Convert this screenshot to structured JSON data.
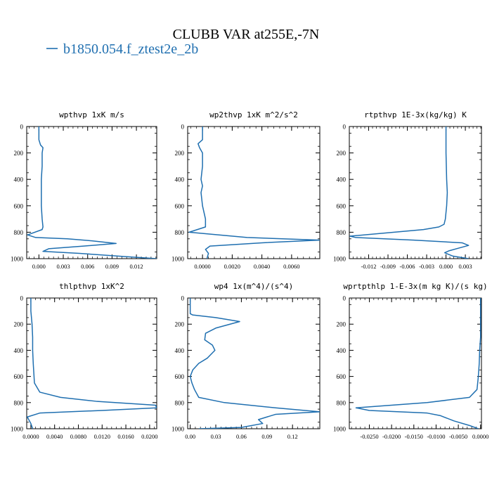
{
  "figure": {
    "title": "CLUBB VAR at255E,-7N",
    "legend": [
      {
        "label": "b1850.054.f_ztest2e_2b",
        "color": "#1f6fb0"
      }
    ]
  },
  "colors": {
    "line": "#1f6fb0",
    "axis": "#000000"
  },
  "chart_data": [
    {
      "type": "line",
      "title": "wpthvp   1xK m/s",
      "ylim": [
        1000,
        0
      ],
      "yticks": [
        "0",
        "200",
        "400",
        "600",
        "800",
        "1000"
      ],
      "xlim": [
        -0.0015,
        0.0145
      ],
      "xticks": [
        0.0,
        0.003,
        0.006,
        0.009,
        0.012
      ],
      "xticklabels": [
        "0.000",
        "0.003",
        "0.006",
        "0.009",
        "0.012"
      ],
      "series": [
        {
          "x": [
            0.0,
            0.0,
            0.0002,
            0.0005,
            0.0004,
            0.0004,
            0.0003,
            0.0003,
            0.0003,
            0.0004,
            0.0005,
            0.0004,
            -0.0014,
            -0.0004,
            0.0035,
            0.0065,
            0.0095,
            0.0055,
            0.0012,
            0.0005,
            0.005,
            0.0107,
            0.0145
          ],
          "y": [
            0,
            100,
            140,
            160,
            200,
            300,
            400,
            500,
            600,
            700,
            760,
            780,
            820,
            840,
            850,
            865,
            885,
            905,
            925,
            945,
            960,
            985,
            1000
          ]
        }
      ]
    },
    {
      "type": "line",
      "title": "wp2thvp   1xK m^2/s^2",
      "ylim": [
        1000,
        0
      ],
      "yticks": [
        "0",
        "200",
        "400",
        "600",
        "800",
        "1000"
      ],
      "xlim": [
        -0.001,
        0.0079
      ],
      "xticks": [
        0.0,
        0.002,
        0.004,
        0.006
      ],
      "xticklabels": [
        "0.0000",
        "0.0020",
        "0.0040",
        "0.0060"
      ],
      "series": [
        {
          "x": [
            0.0,
            0.0,
            -0.0003,
            -0.0002,
            0.0,
            0.0,
            -0.0001,
            0.0,
            -0.0001,
            0.0,
            0.0002,
            0.0002,
            -0.0009,
            0.003,
            0.0079,
            0.004,
            0.0005,
            0.0002,
            0.0004,
            0.0003
          ],
          "y": [
            0,
            100,
            130,
            160,
            200,
            300,
            400,
            450,
            500,
            600,
            700,
            760,
            800,
            840,
            860,
            880,
            905,
            930,
            960,
            1000
          ]
        }
      ]
    },
    {
      "type": "line",
      "title": "rtpthvp   1E-3x(kg/kg) K",
      "ylim": [
        1000,
        0
      ],
      "yticks": [
        "0",
        "200",
        "400",
        "600",
        "800",
        "1000"
      ],
      "xlim": [
        -0.015,
        0.0055
      ],
      "xticks": [
        -0.012,
        -0.009,
        -0.006,
        -0.003,
        0.0,
        0.003
      ],
      "xticklabels": [
        "-0.012",
        "-0.009",
        "-0.006",
        "-0.003",
        "0.000",
        "0.003"
      ],
      "series": [
        {
          "x": [
            0.0,
            0.0,
            0.0001,
            0.0002,
            0.0001,
            -0.0001,
            -0.0003,
            -0.0011,
            -0.0035,
            -0.0149,
            -0.014,
            -0.005,
            0.0025,
            0.0035,
            0.002,
            0.0005,
            -0.0002,
            0.001,
            0.0035
          ],
          "y": [
            0,
            200,
            400,
            500,
            600,
            700,
            740,
            760,
            780,
            830,
            840,
            860,
            880,
            900,
            920,
            940,
            955,
            980,
            1000
          ]
        }
      ]
    },
    {
      "type": "line",
      "title": "thlpthvp   1xK^2",
      "ylim": [
        1000,
        0
      ],
      "yticks": [
        "0",
        "200",
        "400",
        "600",
        "800",
        "1000"
      ],
      "xlim": [
        -0.0007,
        0.0212
      ],
      "xticks": [
        0.0,
        0.004,
        0.008,
        0.012,
        0.016,
        0.02
      ],
      "xticklabels": [
        "0.0000",
        "0.0040",
        "0.0080",
        "0.0120",
        "0.0160",
        "0.0200"
      ],
      "series": [
        {
          "x": [
            0.0,
            0.0,
            0.0002,
            0.0003,
            0.0003,
            0.0004,
            0.0006,
            0.0015,
            0.005,
            0.011,
            0.021,
            0.0212,
            0.012,
            0.0015,
            -0.0006,
            0.0,
            0.0003
          ],
          "y": [
            0,
            100,
            200,
            300,
            400,
            500,
            650,
            720,
            760,
            790,
            820,
            840,
            860,
            880,
            910,
            960,
            1000
          ]
        }
      ]
    },
    {
      "type": "line",
      "title": "wp4   1x(m^4)/(s^4)",
      "ylim": [
        1000,
        0
      ],
      "yticks": [
        "0",
        "200",
        "400",
        "600",
        "800",
        "1000"
      ],
      "xlim": [
        -0.003,
        0.152
      ],
      "xticks": [
        0.0,
        0.03,
        0.06,
        0.09,
        0.12
      ],
      "xticklabels": [
        "0.00",
        "0.03",
        "0.06",
        "0.09",
        "0.12"
      ],
      "series": [
        {
          "x": [
            0.0,
            0.0,
            0.003,
            0.03,
            0.058,
            0.03,
            0.018,
            0.017,
            0.026,
            0.029,
            0.02,
            0.01,
            0.003,
            0.0,
            0.002,
            0.005,
            0.01,
            0.04,
            0.1,
            0.152,
            0.1,
            0.08,
            0.085,
            0.06,
            0.01
          ],
          "y": [
            0,
            120,
            130,
            150,
            180,
            230,
            270,
            320,
            360,
            400,
            460,
            500,
            550,
            600,
            650,
            700,
            760,
            800,
            840,
            870,
            890,
            930,
            960,
            990,
            1000
          ]
        }
      ]
    },
    {
      "type": "line",
      "title": "wprtpthlp   1-E-3x(m kg K)/(s kg)",
      "ylim": [
        1000,
        0
      ],
      "yticks": [
        "0",
        "200",
        "400",
        "600",
        "800",
        "1000"
      ],
      "xlim": [
        -0.0295,
        0.0002
      ],
      "xticks": [
        -0.025,
        -0.02,
        -0.015,
        -0.01,
        -0.005,
        0.0
      ],
      "xticklabels": [
        "-0.0250",
        "-0.0200",
        "-0.0150",
        "-0.0100",
        "-0.0050",
        "0.0000"
      ],
      "series": [
        {
          "x": [
            0.0,
            0.0,
            -0.0002,
            -0.0003,
            -0.0005,
            -0.0008,
            -0.0025,
            -0.012,
            -0.028,
            -0.025,
            -0.012,
            -0.009,
            -0.006,
            -0.0025,
            -0.0005
          ],
          "y": [
            0,
            300,
            400,
            500,
            600,
            700,
            760,
            800,
            840,
            860,
            880,
            900,
            940,
            975,
            1000
          ]
        }
      ]
    }
  ]
}
